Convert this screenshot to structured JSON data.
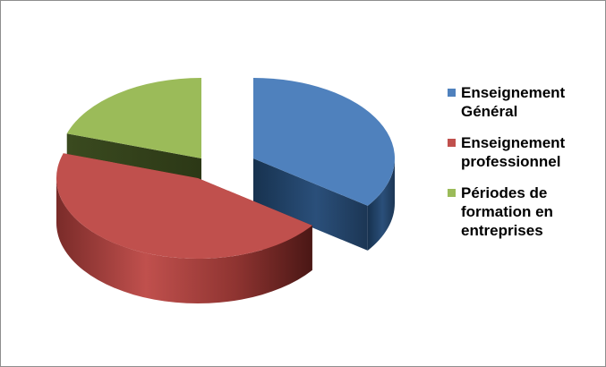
{
  "chart_data": {
    "type": "pie",
    "style": "3d-exploded",
    "categories": [
      "Enseignement Général",
      "Enseignement professionnel",
      "Périodes de formation en entreprises"
    ],
    "values": [
      35,
      45,
      20
    ],
    "unit": "%",
    "colors": [
      "#4f81bd",
      "#c0504d",
      "#9bbb59"
    ],
    "legend_position": "right",
    "legend": [
      {
        "label": "Enseignement Général",
        "lines": [
          "Enseignement",
          "Général"
        ],
        "color": "#4f81bd"
      },
      {
        "label": "Enseignement professionnel",
        "lines": [
          "Enseignement",
          "professionnel"
        ],
        "color": "#c0504d"
      },
      {
        "label": "Périodes de formation en entreprises",
        "lines": [
          "Périodes de",
          "formation en",
          "entreprises"
        ],
        "color": "#9bbb59"
      }
    ]
  }
}
